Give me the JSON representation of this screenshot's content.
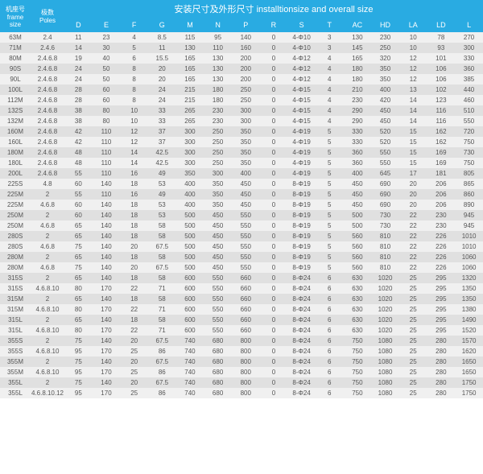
{
  "header": {
    "title": "安装尺寸及外形尺寸 installtionsize and overall size",
    "frame_label": "机座号\nframe size",
    "poles_label": "极数\nPoles"
  },
  "columns": [
    "D",
    "E",
    "F",
    "G",
    "M",
    "N",
    "P",
    "R",
    "S",
    "T",
    "AC",
    "HD",
    "LA",
    "LD",
    "L"
  ],
  "rows": [
    {
      "frame": "63M",
      "poles": "2.4",
      "d": [
        "11",
        "23",
        "4",
        "8.5",
        "115",
        "95",
        "140",
        "0",
        "4-Φ10",
        "3",
        "130",
        "230",
        "10",
        "78",
        "270"
      ]
    },
    {
      "frame": "71M",
      "poles": "2.4.6",
      "d": [
        "14",
        "30",
        "5",
        "11",
        "130",
        "110",
        "160",
        "0",
        "4-Φ10",
        "3",
        "145",
        "250",
        "10",
        "93",
        "300"
      ]
    },
    {
      "frame": "80M",
      "poles": "2.4.6.8",
      "d": [
        "19",
        "40",
        "6",
        "15.5",
        "165",
        "130",
        "200",
        "0",
        "4-Φ12",
        "4",
        "165",
        "320",
        "12",
        "101",
        "330"
      ]
    },
    {
      "frame": "90S",
      "poles": "2.4.6.8",
      "d": [
        "24",
        "50",
        "8",
        "20",
        "165",
        "130",
        "200",
        "0",
        "4-Φ12",
        "4",
        "180",
        "350",
        "12",
        "106",
        "360"
      ]
    },
    {
      "frame": "90L",
      "poles": "2.4.6.8",
      "d": [
        "24",
        "50",
        "8",
        "20",
        "165",
        "130",
        "200",
        "0",
        "4-Φ12",
        "4",
        "180",
        "350",
        "12",
        "106",
        "385"
      ]
    },
    {
      "frame": "100L",
      "poles": "2.4.6.8",
      "d": [
        "28",
        "60",
        "8",
        "24",
        "215",
        "180",
        "250",
        "0",
        "4-Φ15",
        "4",
        "210",
        "400",
        "13",
        "102",
        "440"
      ]
    },
    {
      "frame": "112M",
      "poles": "2.4.6.8",
      "d": [
        "28",
        "60",
        "8",
        "24",
        "215",
        "180",
        "250",
        "0",
        "4-Φ15",
        "4",
        "230",
        "420",
        "14",
        "123",
        "460"
      ]
    },
    {
      "frame": "132S",
      "poles": "2.4.6.8",
      "d": [
        "38",
        "80",
        "10",
        "33",
        "265",
        "230",
        "300",
        "0",
        "4-Φ15",
        "4",
        "290",
        "450",
        "14",
        "116",
        "510"
      ]
    },
    {
      "frame": "132M",
      "poles": "2.4.6.8",
      "d": [
        "38",
        "80",
        "10",
        "33",
        "265",
        "230",
        "300",
        "0",
        "4-Φ15",
        "4",
        "290",
        "450",
        "14",
        "116",
        "550"
      ]
    },
    {
      "frame": "160M",
      "poles": "2.4.6.8",
      "d": [
        "42",
        "110",
        "12",
        "37",
        "300",
        "250",
        "350",
        "0",
        "4-Φ19",
        "5",
        "330",
        "520",
        "15",
        "162",
        "720"
      ]
    },
    {
      "frame": "160L",
      "poles": "2.4.6.8",
      "d": [
        "42",
        "110",
        "12",
        "37",
        "300",
        "250",
        "350",
        "0",
        "4-Φ19",
        "5",
        "330",
        "520",
        "15",
        "162",
        "750"
      ]
    },
    {
      "frame": "180M",
      "poles": "2.4.6.8",
      "d": [
        "48",
        "110",
        "14",
        "42.5",
        "300",
        "250",
        "350",
        "0",
        "4-Φ19",
        "5",
        "360",
        "550",
        "15",
        "169",
        "730"
      ]
    },
    {
      "frame": "180L",
      "poles": "2.4.6.8",
      "d": [
        "48",
        "110",
        "14",
        "42.5",
        "300",
        "250",
        "350",
        "0",
        "4-Φ19",
        "5",
        "360",
        "550",
        "15",
        "169",
        "750"
      ]
    },
    {
      "frame": "200L",
      "poles": "2.4.6.8",
      "d": [
        "55",
        "110",
        "16",
        "49",
        "350",
        "300",
        "400",
        "0",
        "4-Φ19",
        "5",
        "400",
        "645",
        "17",
        "181",
        "805"
      ]
    },
    {
      "frame": "225S",
      "poles": "4.8",
      "d": [
        "60",
        "140",
        "18",
        "53",
        "400",
        "350",
        "450",
        "0",
        "8-Φ19",
        "5",
        "450",
        "690",
        "20",
        "206",
        "865"
      ]
    },
    {
      "frame": "225M",
      "poles": "2",
      "d": [
        "55",
        "110",
        "16",
        "49",
        "400",
        "350",
        "450",
        "0",
        "8-Φ19",
        "5",
        "450",
        "690",
        "20",
        "206",
        "860"
      ]
    },
    {
      "frame": "225M",
      "poles": "4.6.8",
      "d": [
        "60",
        "140",
        "18",
        "53",
        "400",
        "350",
        "450",
        "0",
        "8-Φ19",
        "5",
        "450",
        "690",
        "20",
        "206",
        "890"
      ]
    },
    {
      "frame": "250M",
      "poles": "2",
      "d": [
        "60",
        "140",
        "18",
        "53",
        "500",
        "450",
        "550",
        "0",
        "8-Φ19",
        "5",
        "500",
        "730",
        "22",
        "230",
        "945"
      ]
    },
    {
      "frame": "250M",
      "poles": "4.6.8",
      "d": [
        "65",
        "140",
        "18",
        "58",
        "500",
        "450",
        "550",
        "0",
        "8-Φ19",
        "5",
        "500",
        "730",
        "22",
        "230",
        "945"
      ]
    },
    {
      "frame": "280S",
      "poles": "2",
      "d": [
        "65",
        "140",
        "18",
        "58",
        "500",
        "450",
        "550",
        "0",
        "8-Φ19",
        "5",
        "560",
        "810",
        "22",
        "226",
        "1010"
      ]
    },
    {
      "frame": "280S",
      "poles": "4.6.8",
      "d": [
        "75",
        "140",
        "20",
        "67.5",
        "500",
        "450",
        "550",
        "0",
        "8-Φ19",
        "5",
        "560",
        "810",
        "22",
        "226",
        "1010"
      ]
    },
    {
      "frame": "280M",
      "poles": "2",
      "d": [
        "65",
        "140",
        "18",
        "58",
        "500",
        "450",
        "550",
        "0",
        "8-Φ19",
        "5",
        "560",
        "810",
        "22",
        "226",
        "1060"
      ]
    },
    {
      "frame": "280M",
      "poles": "4.6.8",
      "d": [
        "75",
        "140",
        "20",
        "67.5",
        "500",
        "450",
        "550",
        "0",
        "8-Φ19",
        "5",
        "560",
        "810",
        "22",
        "226",
        "1060"
      ]
    },
    {
      "frame": "315S",
      "poles": "2",
      "d": [
        "65",
        "140",
        "18",
        "58",
        "600",
        "550",
        "660",
        "0",
        "8-Φ24",
        "6",
        "630",
        "1020",
        "25",
        "295",
        "1320"
      ]
    },
    {
      "frame": "315S",
      "poles": "4.6.8.10",
      "d": [
        "80",
        "170",
        "22",
        "71",
        "600",
        "550",
        "660",
        "0",
        "8-Φ24",
        "6",
        "630",
        "1020",
        "25",
        "295",
        "1350"
      ]
    },
    {
      "frame": "315M",
      "poles": "2",
      "d": [
        "65",
        "140",
        "18",
        "58",
        "600",
        "550",
        "660",
        "0",
        "8-Φ24",
        "6",
        "630",
        "1020",
        "25",
        "295",
        "1350"
      ]
    },
    {
      "frame": "315M",
      "poles": "4.6.8.10",
      "d": [
        "80",
        "170",
        "22",
        "71",
        "600",
        "550",
        "660",
        "0",
        "8-Φ24",
        "6",
        "630",
        "1020",
        "25",
        "295",
        "1380"
      ]
    },
    {
      "frame": "315L",
      "poles": "2",
      "d": [
        "65",
        "140",
        "18",
        "58",
        "600",
        "550",
        "660",
        "0",
        "8-Φ24",
        "6",
        "630",
        "1020",
        "25",
        "295",
        "1490"
      ]
    },
    {
      "frame": "315L",
      "poles": "4.6.8.10",
      "d": [
        "80",
        "170",
        "22",
        "71",
        "600",
        "550",
        "660",
        "0",
        "8-Φ24",
        "6",
        "630",
        "1020",
        "25",
        "295",
        "1520"
      ]
    },
    {
      "frame": "355S",
      "poles": "2",
      "d": [
        "75",
        "140",
        "20",
        "67.5",
        "740",
        "680",
        "800",
        "0",
        "8-Φ24",
        "6",
        "750",
        "1080",
        "25",
        "280",
        "1570"
      ]
    },
    {
      "frame": "355S",
      "poles": "4.6.8.10",
      "d": [
        "95",
        "170",
        "25",
        "86",
        "740",
        "680",
        "800",
        "0",
        "8-Φ24",
        "6",
        "750",
        "1080",
        "25",
        "280",
        "1620"
      ]
    },
    {
      "frame": "355M",
      "poles": "2",
      "d": [
        "75",
        "140",
        "20",
        "67.5",
        "740",
        "680",
        "800",
        "0",
        "8-Φ24",
        "6",
        "750",
        "1080",
        "25",
        "280",
        "1650"
      ]
    },
    {
      "frame": "355M",
      "poles": "4.6.8.10",
      "d": [
        "95",
        "170",
        "25",
        "86",
        "740",
        "680",
        "800",
        "0",
        "8-Φ24",
        "6",
        "750",
        "1080",
        "25",
        "280",
        "1650"
      ]
    },
    {
      "frame": "355L",
      "poles": "2",
      "d": [
        "75",
        "140",
        "20",
        "67.5",
        "740",
        "680",
        "800",
        "0",
        "8-Φ24",
        "6",
        "750",
        "1080",
        "25",
        "280",
        "1750"
      ]
    },
    {
      "frame": "355L",
      "poles": "4.6.8.10.12",
      "d": [
        "95",
        "170",
        "25",
        "86",
        "740",
        "680",
        "800",
        "0",
        "8-Φ24",
        "6",
        "750",
        "1080",
        "25",
        "280",
        "1750"
      ]
    }
  ]
}
